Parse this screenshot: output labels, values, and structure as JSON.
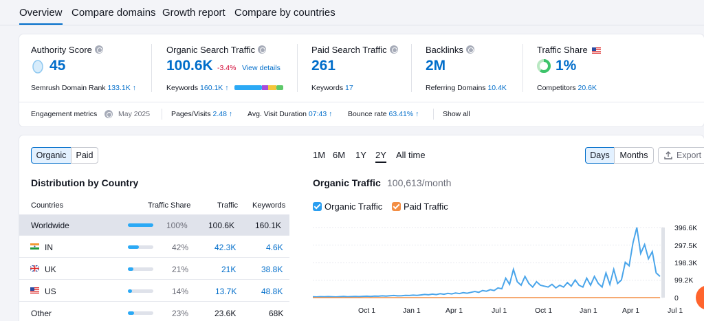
{
  "tabs": [
    "Overview",
    "Compare domains",
    "Growth report",
    "Compare by countries"
  ],
  "metrics": {
    "authority": {
      "title": "Authority Score",
      "value": "45",
      "sub_label": "Semrush Domain Rank",
      "sub_value": "133.1K",
      "sub_arrow": "↑"
    },
    "organic": {
      "title": "Organic Search Traffic",
      "value": "100.6K",
      "change": "-3.4%",
      "link": "View details",
      "sub_label": "Keywords",
      "sub_value": "160.1K",
      "sub_arrow": "↑"
    },
    "paid": {
      "title": "Paid Search Traffic",
      "value": "261",
      "sub_label": "Keywords",
      "sub_value": "17"
    },
    "backlinks": {
      "title": "Backlinks",
      "value": "2M",
      "sub_label": "Referring Domains",
      "sub_value": "10.4K"
    },
    "traffic_share": {
      "title": "Traffic Share",
      "value": "1%",
      "sub_label": "Competitors",
      "sub_value": "20.6K"
    }
  },
  "engagement": {
    "label": "Engagement metrics",
    "date": "May 2025",
    "pages_label": "Pages/Visits",
    "pages_value": "2.48",
    "pages_arrow": "↑",
    "duration_label": "Avg. Visit Duration",
    "duration_value": "07:43",
    "duration_arrow": "↑",
    "bounce_label": "Bounce rate",
    "bounce_value": "63.41%",
    "bounce_arrow": "↑",
    "show_all": "Show all"
  },
  "distribution": {
    "toggle": [
      "Organic",
      "Paid"
    ],
    "title": "Distribution by Country",
    "headers": [
      "Countries",
      "Traffic Share",
      "Traffic",
      "Keywords"
    ],
    "rows": [
      {
        "country": "Worldwide",
        "share": "100%",
        "share_frac": 1.0,
        "traffic": "100.6K",
        "keywords": "160.1K"
      },
      {
        "country": "IN",
        "share": "42%",
        "share_frac": 0.42,
        "traffic": "42.3K",
        "keywords": "4.6K"
      },
      {
        "country": "UK",
        "share": "21%",
        "share_frac": 0.21,
        "traffic": "21K",
        "keywords": "38.8K"
      },
      {
        "country": "US",
        "share": "14%",
        "share_frac": 0.14,
        "traffic": "13.7K",
        "keywords": "48.8K"
      },
      {
        "country": "Other",
        "share": "23%",
        "share_frac": 0.23,
        "traffic": "23.6K",
        "keywords": "68K"
      }
    ]
  },
  "traffic_panel": {
    "periods": [
      "1M",
      "6M",
      "1Y",
      "2Y",
      "All time"
    ],
    "active_period": "2Y",
    "granularity": [
      "Days",
      "Months"
    ],
    "export": "Export",
    "title": "Organic Traffic",
    "subtitle": "100,613/month",
    "legend": [
      "Organic Traffic",
      "Paid Traffic"
    ]
  },
  "chart_data": {
    "type": "line",
    "x_ticks": [
      "Oct 1",
      "Jan 1",
      "Apr 1",
      "Jul 1",
      "Oct 1",
      "Jan 1",
      "Apr 1",
      "Jul 1"
    ],
    "y_ticks": [
      "396.6K",
      "297.5K",
      "198.3K",
      "99.2K",
      "0"
    ],
    "ylim": [
      0,
      396600
    ],
    "series": [
      {
        "name": "Organic Traffic",
        "color": "#4aa5ea",
        "values": [
          5000,
          4000,
          5500,
          4500,
          6000,
          5000,
          4000,
          5500,
          6500,
          5000,
          6000,
          7000,
          6000,
          7500,
          8000,
          7000,
          9000,
          8000,
          10000,
          9000,
          11000,
          12000,
          10000,
          11000,
          13000,
          12000,
          14000,
          13000,
          15000,
          18000,
          16000,
          20000,
          17000,
          22000,
          19000,
          24000,
          21000,
          26000,
          23000,
          28000,
          25000,
          30000,
          35000,
          30000,
          40000,
          36000,
          45000,
          40000,
          55000,
          50000,
          110000,
          75000,
          160000,
          90000,
          70000,
          120000,
          80000,
          60000,
          90000,
          70000,
          65000,
          60000,
          75000,
          55000,
          70000,
          60000,
          85000,
          65000,
          100000,
          70000,
          60000,
          110000,
          70000,
          120000,
          80000,
          60000,
          140000,
          75000,
          160000,
          80000,
          100000,
          200000,
          180000,
          310000,
          396600,
          250000,
          300000,
          220000,
          260000,
          140000,
          120000
        ]
      },
      {
        "name": "Paid Traffic",
        "color": "#f38e44",
        "values": [
          0,
          0,
          0,
          0,
          0,
          0,
          0,
          0,
          0,
          0,
          0,
          0,
          0,
          0,
          0,
          0,
          0,
          0,
          0,
          0,
          0,
          0,
          0,
          0,
          0,
          0,
          0,
          0,
          0,
          0,
          0,
          0,
          0,
          0,
          0,
          0,
          0,
          0,
          0,
          0,
          0,
          0,
          0,
          0,
          0,
          0,
          0,
          0,
          0,
          0,
          0,
          0,
          0,
          0,
          0,
          0,
          0,
          0,
          0,
          0,
          0,
          0,
          0,
          0,
          0,
          0,
          0,
          0,
          0,
          0,
          0,
          0,
          0,
          0,
          0,
          0,
          0,
          0,
          0,
          0,
          0,
          0,
          0,
          0,
          0,
          0,
          0,
          0,
          0,
          0,
          0
        ]
      }
    ],
    "grid": true
  }
}
